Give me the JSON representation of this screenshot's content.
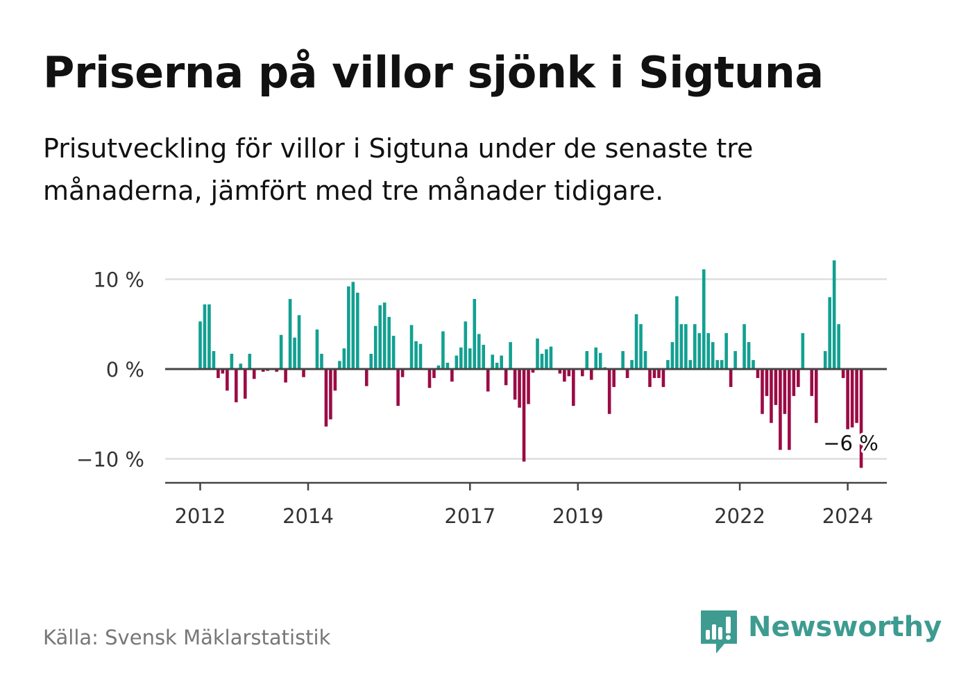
{
  "title": "Priserna på villor sjönk i Sigtuna",
  "subtitle": "Prisutveckling för villor i Sigtuna under de senaste tre månaderna, jämfört med tre månader tidigare.",
  "source": "Källa: Svensk Mäklarstatistik",
  "brand": {
    "name": "Newsworthy"
  },
  "colors": {
    "positive": "#12a091",
    "negative": "#9b0b45",
    "grid": "#dddddd",
    "zero_line": "#444444",
    "axis": "#444444",
    "text": "#333333"
  },
  "chart_data": {
    "type": "bar",
    "title": "Priserna på villor sjönk i Sigtuna",
    "xlabel": "",
    "ylabel": "",
    "unit": "%",
    "ylim": [
      -12.5,
      10.5
    ],
    "yticks": [
      10,
      0,
      -10
    ],
    "ytick_labels": [
      "10 %",
      "0 %",
      "−10 %"
    ],
    "xticks": [
      2012,
      2014,
      2017,
      2019,
      2022,
      2024
    ],
    "grid": true,
    "start": "2012-01",
    "frequency": "monthly",
    "annotation": {
      "text": "−6 %",
      "value": -6
    },
    "values": [
      5.3,
      7.2,
      7.2,
      2.0,
      -1.0,
      -0.5,
      -2.4,
      1.7,
      -3.7,
      0.6,
      -3.3,
      1.7,
      -1.1,
      0.0,
      -0.3,
      -0.2,
      0.0,
      -0.3,
      3.8,
      -1.5,
      7.8,
      3.5,
      6.0,
      -0.9,
      0.0,
      0.0,
      4.4,
      1.7,
      -6.4,
      -5.6,
      -2.4,
      0.9,
      2.3,
      9.2,
      9.7,
      8.5,
      0.0,
      -1.9,
      1.7,
      4.8,
      7.1,
      7.4,
      5.8,
      3.7,
      -4.1,
      -0.9,
      0.0,
      4.9,
      3.1,
      2.8,
      0.0,
      -2.1,
      -1.0,
      0.4,
      4.2,
      0.7,
      -1.4,
      1.5,
      2.4,
      5.3,
      2.3,
      7.8,
      3.9,
      2.7,
      -2.5,
      1.6,
      0.7,
      1.5,
      -1.8,
      3.0,
      -3.4,
      -4.3,
      -10.3,
      -3.9,
      -0.4,
      3.4,
      1.7,
      2.2,
      2.5,
      0.0,
      -0.5,
      -1.4,
      -0.8,
      -4.1,
      0.0,
      -0.8,
      2.0,
      -1.2,
      2.4,
      1.8,
      0.2,
      -5.0,
      -2.0,
      0.0,
      2.0,
      -1.0,
      1.0,
      6.1,
      5.0,
      2.0,
      -2.0,
      -1.0,
      -1.0,
      -2.0,
      1.0,
      3.0,
      8.1,
      5.0,
      5.0,
      1.0,
      5.0,
      4.0,
      11.1,
      4.0,
      3.0,
      1.0,
      1.0,
      4.0,
      -2.0,
      2.0,
      0.0,
      5.0,
      3.0,
      1.0,
      -1.0,
      -5.0,
      -3.0,
      -6.0,
      -4.0,
      -9.0,
      -5.0,
      -9.0,
      -3.0,
      -2.0,
      4.0,
      0.0,
      -3.0,
      -6.0,
      0.0,
      2.0,
      8.0,
      12.1,
      5.0,
      -1.0,
      -6.7,
      -6.5,
      -6.0,
      -11.0
    ]
  }
}
